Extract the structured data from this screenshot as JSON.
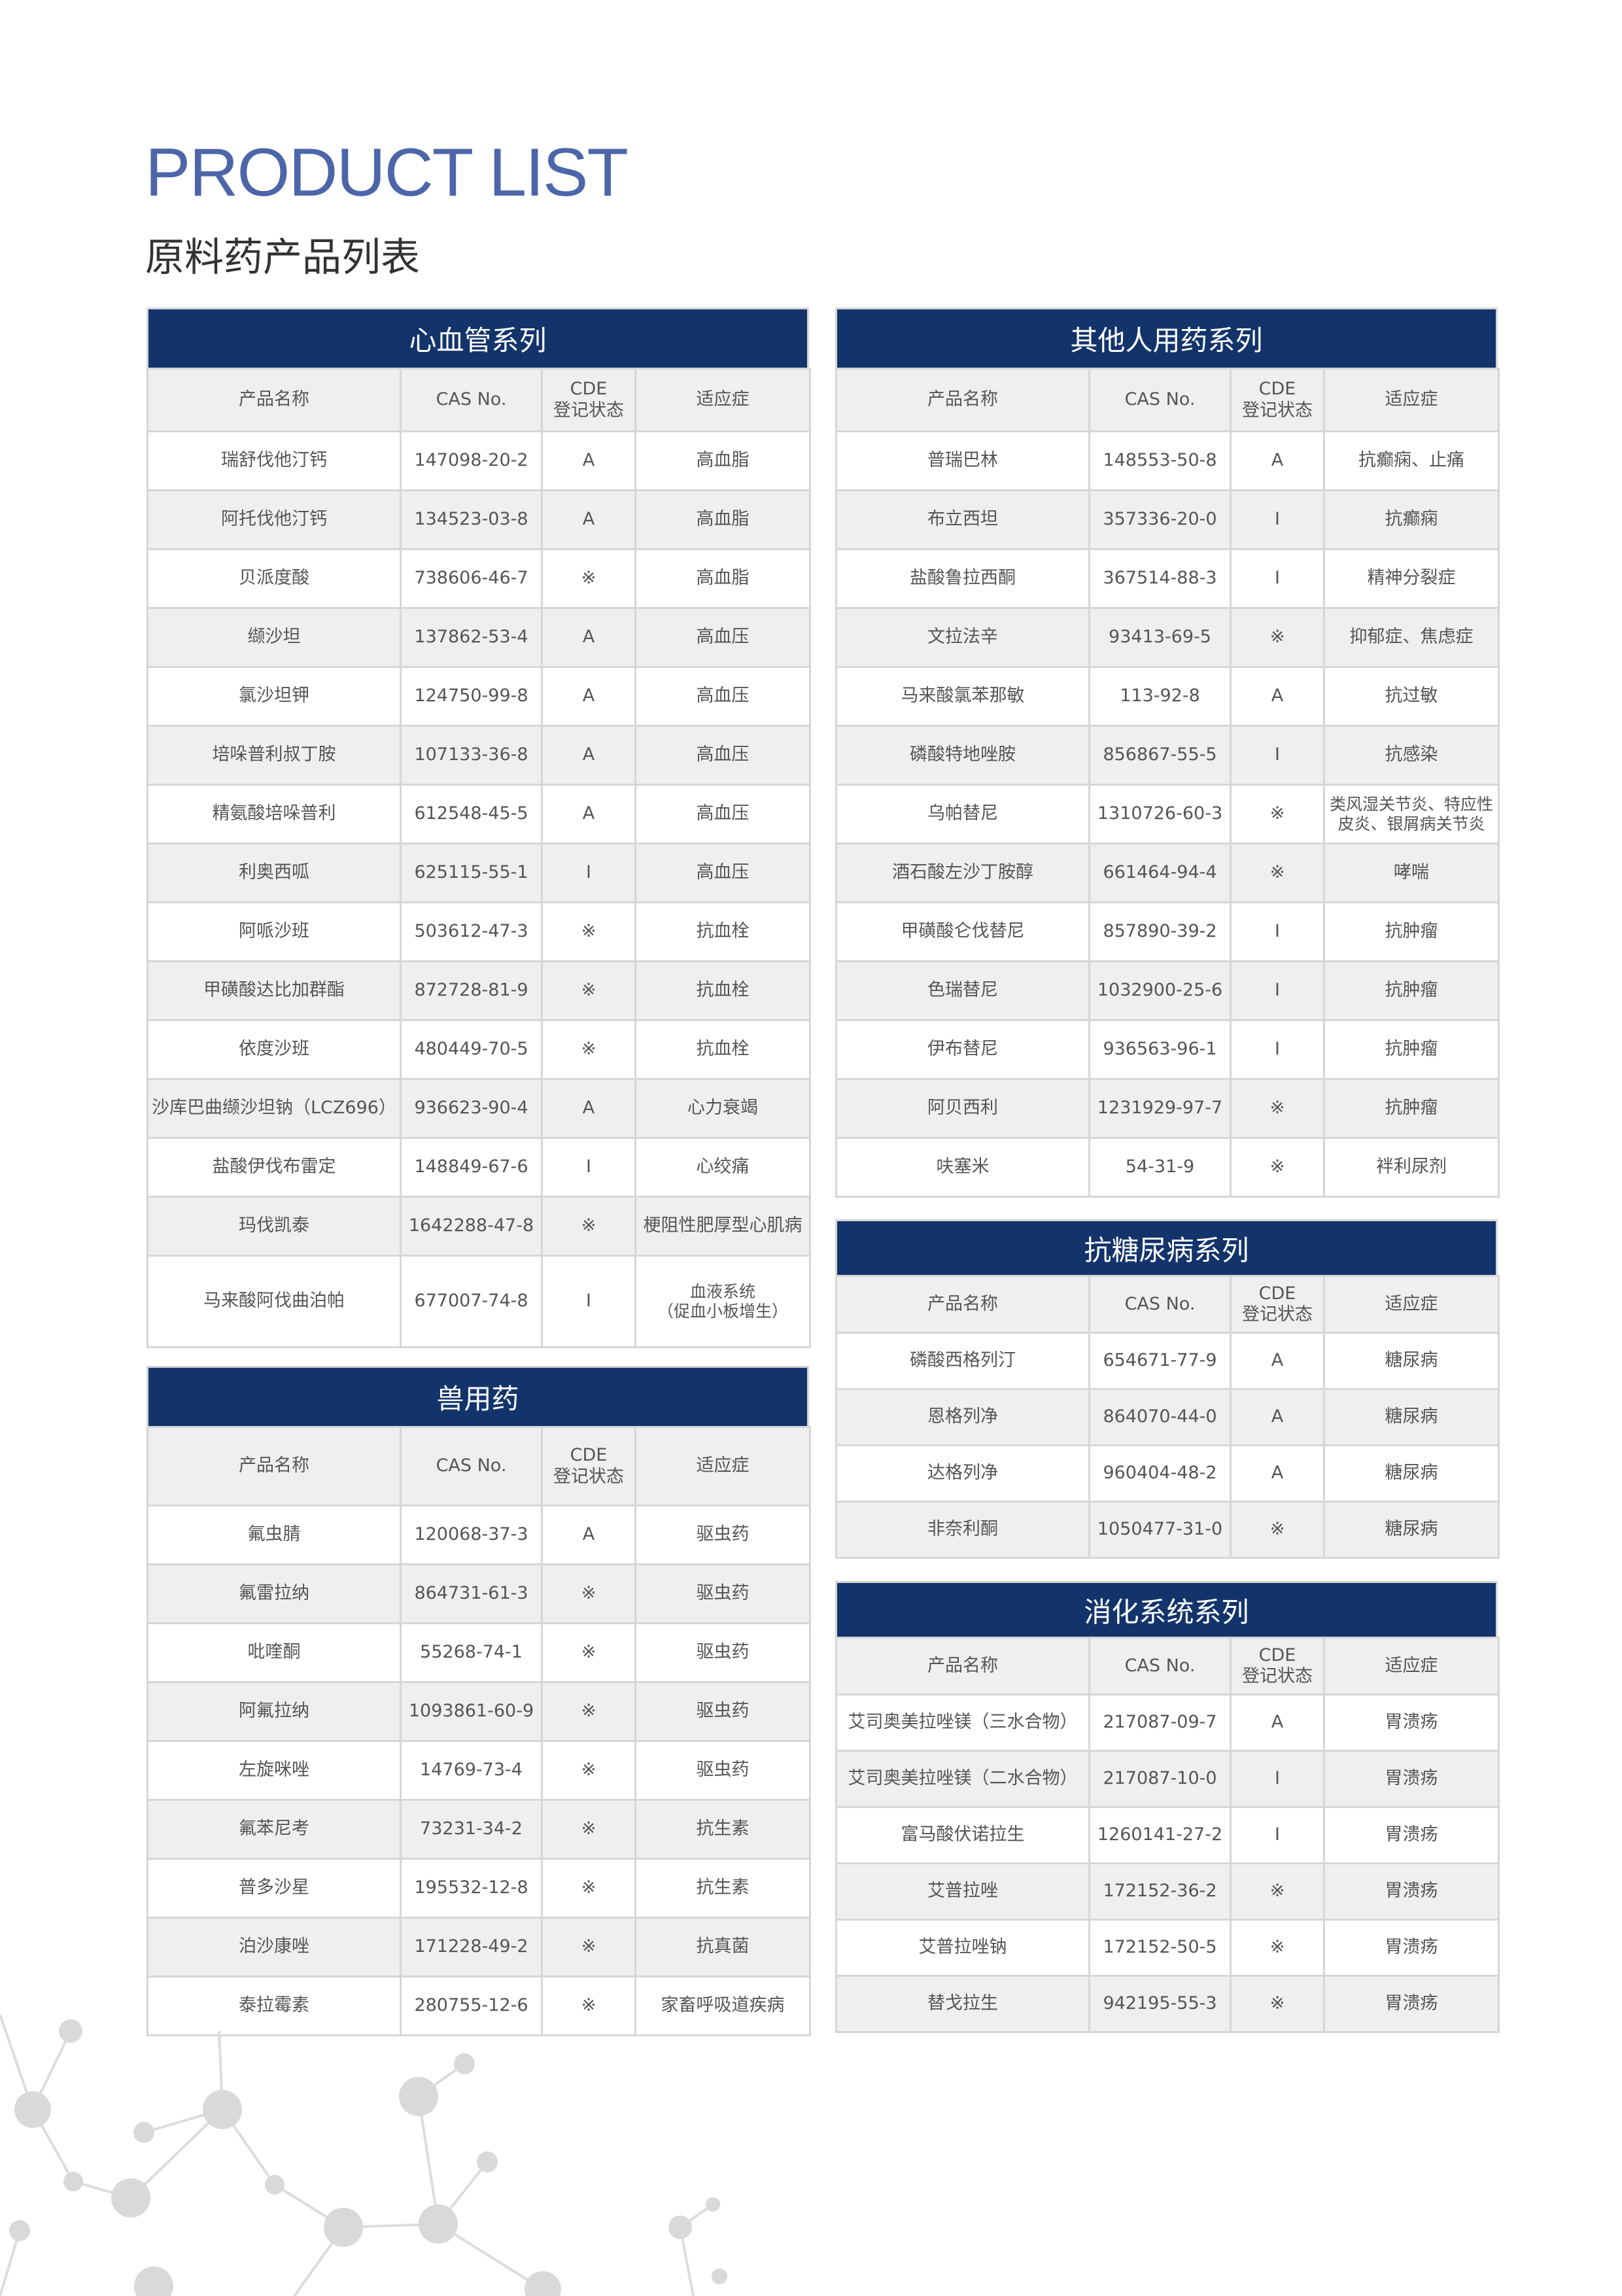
{
  "header": {
    "title": "PRODUCT LIST",
    "subtitle": "原料药产品列表"
  },
  "columns": [
    "产品名称",
    "CAS No.",
    "CDE\n登记状态",
    "适应症"
  ],
  "colors": {
    "band": "#13346b",
    "title": "#4d65a9",
    "row_alt": "#efefef"
  },
  "tables": [
    {
      "title": "心血管系列",
      "rows": [
        [
          "瑞舒伐他汀钙",
          "147098-20-2",
          "A",
          "高血脂"
        ],
        [
          "阿托伐他汀钙",
          "134523-03-8",
          "A",
          "高血脂"
        ],
        [
          "贝派度酸",
          "738606-46-7",
          "※",
          "高血脂"
        ],
        [
          "缬沙坦",
          "137862-53-4",
          "A",
          "高血压"
        ],
        [
          "氯沙坦钾",
          "124750-99-8",
          "A",
          "高血压"
        ],
        [
          "培哚普利叔丁胺",
          "107133-36-8",
          "A",
          "高血压"
        ],
        [
          "精氨酸培哚普利",
          "612548-45-5",
          "A",
          "高血压"
        ],
        [
          "利奥西呱",
          "625115-55-1",
          "I",
          "高血压"
        ],
        [
          "阿哌沙班",
          "503612-47-3",
          "※",
          "抗血栓"
        ],
        [
          "甲磺酸达比加群酯",
          "872728-81-9",
          "※",
          "抗血栓"
        ],
        [
          "依度沙班",
          "480449-70-5",
          "※",
          "抗血栓"
        ],
        [
          "沙库巴曲缬沙坦钠（LCZ696）",
          "936623-90-4",
          "A",
          "心力衰竭"
        ],
        [
          "盐酸伊伐布雷定",
          "148849-67-6",
          "I",
          "心绞痛"
        ],
        [
          "玛伐凯泰",
          "1642288-47-8",
          "※",
          "梗阻性肥厚型心肌病"
        ],
        [
          "马来酸阿伐曲泊帕",
          "677007-74-8",
          "I",
          "血液系统\n（促血小板增生）"
        ]
      ]
    },
    {
      "title": "兽用药",
      "rows": [
        [
          "氟虫腈",
          "120068-37-3",
          "A",
          "驱虫药"
        ],
        [
          "氟雷拉纳",
          "864731-61-3",
          "※",
          "驱虫药"
        ],
        [
          "吡喹酮",
          "55268-74-1",
          "※",
          "驱虫药"
        ],
        [
          "阿氟拉纳",
          "1093861-60-9",
          "※",
          "驱虫药"
        ],
        [
          "左旋咪唑",
          "14769-73-4",
          "※",
          "驱虫药"
        ],
        [
          "氟苯尼考",
          "73231-34-2",
          "※",
          "抗生素"
        ],
        [
          "普多沙星",
          "195532-12-8",
          "※",
          "抗生素"
        ],
        [
          "泊沙康唑",
          "171228-49-2",
          "※",
          "抗真菌"
        ],
        [
          "泰拉霉素",
          "280755-12-6",
          "※",
          "家畜呼吸道疾病"
        ]
      ]
    },
    {
      "title": "其他人用药系列",
      "rows": [
        [
          "普瑞巴林",
          "148553-50-8",
          "A",
          "抗癫痫、止痛"
        ],
        [
          "布立西坦",
          "357336-20-0",
          "I",
          "抗癫痫"
        ],
        [
          "盐酸鲁拉西酮",
          "367514-88-3",
          "I",
          "精神分裂症"
        ],
        [
          "文拉法辛",
          "93413-69-5",
          "※",
          "抑郁症、焦虑症"
        ],
        [
          "马来酸氯苯那敏",
          "113-92-8",
          "A",
          "抗过敏"
        ],
        [
          "磷酸特地唑胺",
          "856867-55-5",
          "I",
          "抗感染"
        ],
        [
          "乌帕替尼",
          "1310726-60-3",
          "※",
          "类风湿关节炎、特应性\n皮炎、银屑病关节炎"
        ],
        [
          "酒石酸左沙丁胺醇",
          "661464-94-4",
          "※",
          "哮喘"
        ],
        [
          "甲磺酸仑伐替尼",
          "857890-39-2",
          "I",
          "抗肿瘤"
        ],
        [
          "色瑞替尼",
          "1032900-25-6",
          "I",
          "抗肿瘤"
        ],
        [
          "伊布替尼",
          "936563-96-1",
          "I",
          "抗肿瘤"
        ],
        [
          "阿贝西利",
          "1231929-97-7",
          "※",
          "抗肿瘤"
        ],
        [
          "呋塞米",
          "54-31-9",
          "※",
          "袢利尿剂"
        ]
      ]
    },
    {
      "title": "抗糖尿病系列",
      "rows": [
        [
          "磷酸西格列汀",
          "654671-77-9",
          "A",
          "糖尿病"
        ],
        [
          "恩格列净",
          "864070-44-0",
          "A",
          "糖尿病"
        ],
        [
          "达格列净",
          "960404-48-2",
          "A",
          "糖尿病"
        ],
        [
          "非奈利酮",
          "1050477-31-0",
          "※",
          "糖尿病"
        ]
      ]
    },
    {
      "title": "消化系统系列",
      "rows": [
        [
          "艾司奥美拉唑镁（三水合物）",
          "217087-09-7",
          "A",
          "胃溃疡"
        ],
        [
          "艾司奥美拉唑镁（二水合物）",
          "217087-10-0",
          "I",
          "胃溃疡"
        ],
        [
          "富马酸伏诺拉生",
          "1260141-27-2",
          "I",
          "胃溃疡"
        ],
        [
          "艾普拉唑",
          "172152-36-2",
          "※",
          "胃溃疡"
        ],
        [
          "艾普拉唑钠",
          "172152-50-5",
          "※",
          "胃溃疡"
        ],
        [
          "替戈拉生",
          "942195-55-3",
          "※",
          "胃溃疡"
        ]
      ]
    }
  ]
}
